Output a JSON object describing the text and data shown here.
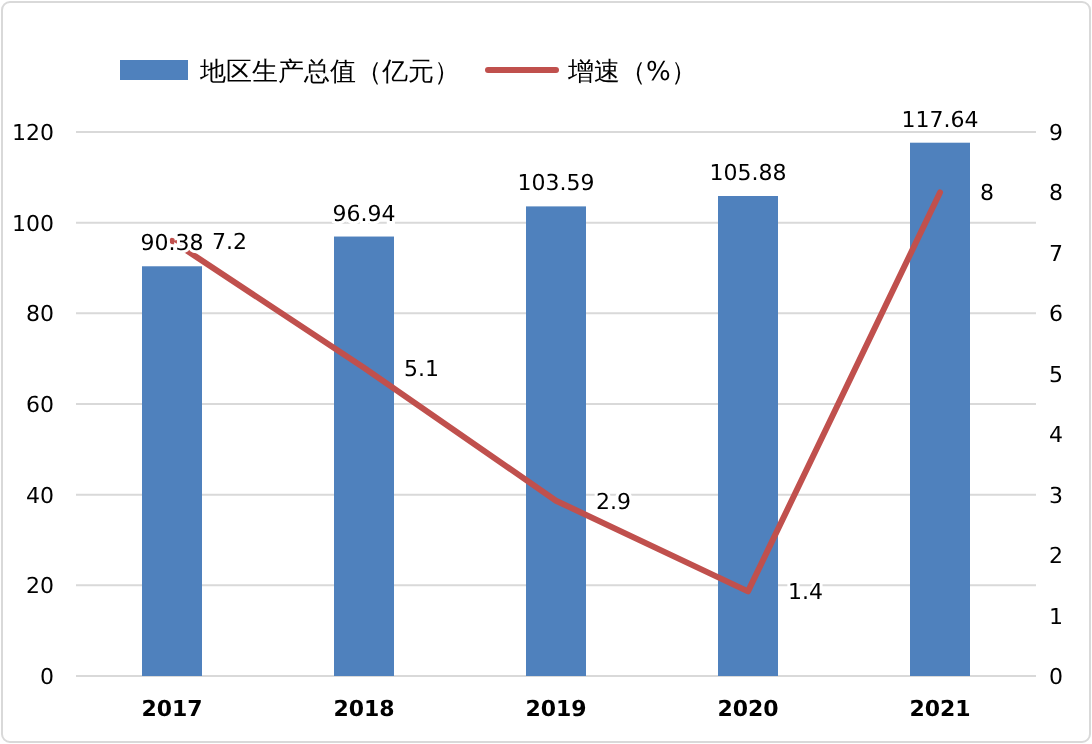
{
  "chart_data": {
    "type": "bar",
    "categories": [
      "2017",
      "2018",
      "2019",
      "2020",
      "2021"
    ],
    "series": [
      {
        "name": "地区生产总值（亿元）",
        "color": "#4f81bd",
        "values": [
          90.38,
          96.94,
          103.59,
          105.88,
          117.64
        ]
      },
      {
        "name": "增速（%）",
        "type": "line",
        "axis": "y2",
        "color": "#c0504d",
        "values": [
          7.2,
          5.1,
          2.9,
          1.4,
          8
        ]
      }
    ],
    "ylim": [
      0,
      120
    ],
    "yticks": [
      0,
      20,
      40,
      60,
      80,
      100,
      120
    ],
    "y2lim": [
      0,
      9
    ],
    "y2ticks": [
      0,
      1,
      2,
      3,
      4,
      5,
      6,
      7,
      8,
      9
    ],
    "grid": "y",
    "legend": "top",
    "data_labels": true,
    "marker": "none",
    "line_style": "solid"
  }
}
